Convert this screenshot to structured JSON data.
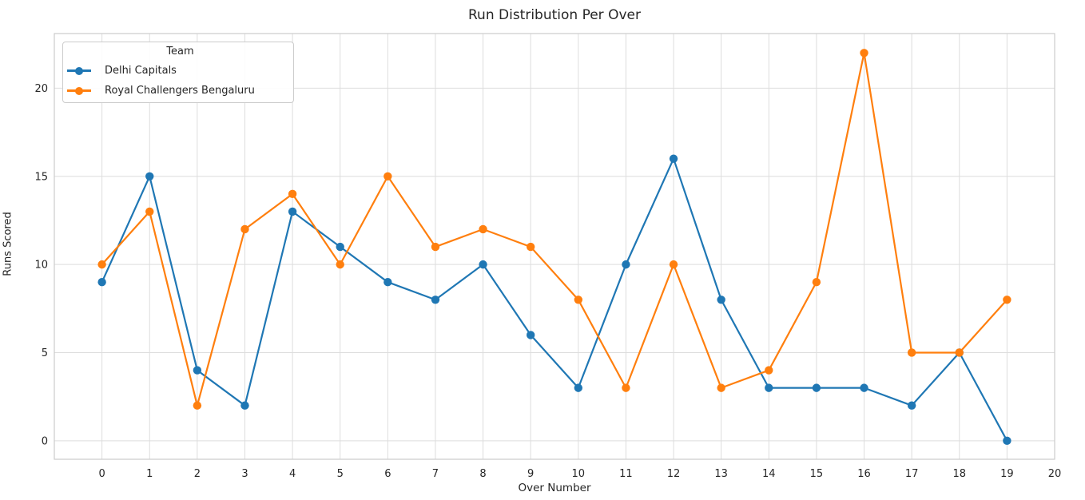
{
  "chart_data": {
    "type": "line",
    "title": "Run Distribution Per Over",
    "xlabel": "Over Number",
    "ylabel": "Runs Scored",
    "legend_title": "Team",
    "legend_position": "upper-left",
    "grid": true,
    "x": [
      0,
      1,
      2,
      3,
      4,
      5,
      6,
      7,
      8,
      9,
      10,
      11,
      12,
      13,
      14,
      15,
      16,
      17,
      18,
      19
    ],
    "series": [
      {
        "name": "Delhi Capitals",
        "color": "#1f77b4",
        "values": [
          9,
          15,
          4,
          2,
          13,
          11,
          9,
          8,
          10,
          6,
          3,
          10,
          16,
          8,
          3,
          3,
          3,
          2,
          5,
          0
        ]
      },
      {
        "name": "Royal Challengers Bengaluru",
        "color": "#ff7f0e",
        "values": [
          10,
          13,
          2,
          12,
          14,
          10,
          15,
          11,
          12,
          11,
          8,
          3,
          10,
          3,
          4,
          9,
          22,
          5,
          5,
          8
        ]
      }
    ],
    "xticks": [
      0,
      1,
      2,
      3,
      4,
      5,
      6,
      7,
      8,
      9,
      10,
      11,
      12,
      13,
      14,
      15,
      16,
      17,
      18,
      19,
      20
    ],
    "yticks": [
      0,
      5,
      10,
      15,
      20
    ],
    "xlim": [
      -1.0,
      20.0
    ],
    "ylim": [
      -1.05,
      23.1
    ],
    "colors": {
      "grid": "#dddddd",
      "axes_border": "#cccccc",
      "text": "#262626",
      "background": "#ffffff"
    }
  }
}
